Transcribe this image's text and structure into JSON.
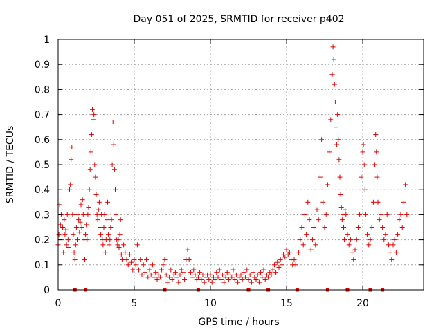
{
  "chart_data": {
    "type": "scatter",
    "title": "Day 051 of 2025, SRMTID for receiver p402",
    "xlabel": "GPS time / hours",
    "ylabel": "SRMTID / TECUs",
    "xlim": [
      0,
      24
    ],
    "ylim": [
      0,
      1
    ],
    "x_ticks": [
      0,
      5,
      10,
      15,
      20
    ],
    "x_tick_labels": [
      "0",
      "5",
      "10",
      "15",
      "20"
    ],
    "y_ticks": [
      0,
      0.1,
      0.2,
      0.3,
      0.4,
      0.5,
      0.6,
      0.7,
      0.8,
      0.9,
      1
    ],
    "y_tick_labels": [
      "0",
      "0.1",
      "0.2",
      "0.3",
      "0.4",
      "0.5",
      "0.6",
      "0.7",
      "0.8",
      "0.9",
      "1"
    ],
    "grid": true,
    "marker": "+",
    "color": "#e00000",
    "series": [
      {
        "name": "SRMTID",
        "points": [
          [
            0.0,
            0.18
          ],
          [
            0.05,
            0.22
          ],
          [
            0.1,
            0.34
          ],
          [
            0.15,
            0.26
          ],
          [
            0.2,
            0.3
          ],
          [
            0.25,
            0.2
          ],
          [
            0.3,
            0.25
          ],
          [
            0.35,
            0.15
          ],
          [
            0.4,
            0.28
          ],
          [
            0.45,
            0.22
          ],
          [
            0.5,
            0.24
          ],
          [
            0.55,
            0.18
          ],
          [
            0.6,
            0.3
          ],
          [
            0.65,
            0.2
          ],
          [
            0.7,
            0.17
          ],
          [
            0.75,
            0.4
          ],
          [
            0.8,
            0.42
          ],
          [
            0.85,
            0.52
          ],
          [
            0.9,
            0.57
          ],
          [
            0.95,
            0.3
          ],
          [
            1.0,
            0.22
          ],
          [
            1.05,
            0.15
          ],
          [
            1.1,
            0.12
          ],
          [
            1.15,
            0.18
          ],
          [
            1.2,
            0.25
          ],
          [
            1.25,
            0.2
          ],
          [
            1.3,
            0.3
          ],
          [
            1.35,
            0.28
          ],
          [
            1.4,
            0.23
          ],
          [
            1.45,
            0.27
          ],
          [
            1.5,
            0.34
          ],
          [
            1.55,
            0.25
          ],
          [
            1.6,
            0.36
          ],
          [
            1.65,
            0.3
          ],
          [
            1.7,
            0.2
          ],
          [
            1.75,
            0.12
          ],
          [
            1.8,
            0.22
          ],
          [
            1.85,
            0.26
          ],
          [
            1.9,
            0.2
          ],
          [
            1.95,
            0.3
          ],
          [
            2.0,
            0.33
          ],
          [
            2.05,
            0.4
          ],
          [
            2.1,
            0.48
          ],
          [
            2.15,
            0.55
          ],
          [
            2.2,
            0.62
          ],
          [
            2.25,
            0.72
          ],
          [
            2.3,
            0.68
          ],
          [
            2.35,
            0.7
          ],
          [
            2.4,
            0.5
          ],
          [
            2.45,
            0.45
          ],
          [
            2.5,
            0.38
          ],
          [
            2.55,
            0.3
          ],
          [
            2.6,
            0.28
          ],
          [
            2.65,
            0.32
          ],
          [
            2.7,
            0.35
          ],
          [
            2.75,
            0.25
          ],
          [
            2.8,
            0.22
          ],
          [
            2.85,
            0.3
          ],
          [
            2.9,
            0.2
          ],
          [
            2.95,
            0.18
          ],
          [
            3.0,
            0.25
          ],
          [
            3.05,
            0.3
          ],
          [
            3.1,
            0.15
          ],
          [
            3.15,
            0.2
          ],
          [
            3.2,
            0.28
          ],
          [
            3.25,
            0.35
          ],
          [
            3.3,
            0.22
          ],
          [
            3.35,
            0.18
          ],
          [
            3.4,
            0.2
          ],
          [
            3.45,
            0.25
          ],
          [
            3.5,
            0.28
          ],
          [
            3.55,
            0.5
          ],
          [
            3.6,
            0.67
          ],
          [
            3.65,
            0.58
          ],
          [
            3.7,
            0.48
          ],
          [
            3.75,
            0.4
          ],
          [
            3.8,
            0.3
          ],
          [
            3.85,
            0.2
          ],
          [
            3.9,
            0.18
          ],
          [
            3.95,
            0.2
          ],
          [
            4.0,
            0.17
          ],
          [
            4.05,
            0.22
          ],
          [
            4.1,
            0.28
          ],
          [
            4.15,
            0.14
          ],
          [
            4.2,
            0.12
          ],
          [
            4.3,
            0.18
          ],
          [
            4.4,
            0.15
          ],
          [
            4.5,
            0.12
          ],
          [
            4.6,
            0.1
          ],
          [
            4.7,
            0.14
          ],
          [
            4.8,
            0.11
          ],
          [
            4.9,
            0.08
          ],
          [
            5.0,
            0.12
          ],
          [
            5.1,
            0.1
          ],
          [
            5.2,
            0.18
          ],
          [
            5.3,
            0.08
          ],
          [
            5.4,
            0.12
          ],
          [
            5.5,
            0.06
          ],
          [
            5.6,
            0.1
          ],
          [
            5.7,
            0.07
          ],
          [
            5.8,
            0.12
          ],
          [
            5.9,
            0.05
          ],
          [
            6.0,
            0.08
          ],
          [
            6.1,
            0.06
          ],
          [
            6.2,
            0.1
          ],
          [
            6.3,
            0.05
          ],
          [
            6.4,
            0.07
          ],
          [
            6.5,
            0.04
          ],
          [
            6.6,
            0.06
          ],
          [
            6.7,
            0.05
          ],
          [
            6.8,
            0.08
          ],
          [
            6.9,
            0.1
          ],
          [
            7.0,
            0.12
          ],
          [
            7.1,
            0.06
          ],
          [
            7.2,
            0.03
          ],
          [
            7.3,
            0.05
          ],
          [
            7.4,
            0.08
          ],
          [
            7.5,
            0.04
          ],
          [
            7.6,
            0.06
          ],
          [
            7.7,
            0.07
          ],
          [
            7.8,
            0.05
          ],
          [
            7.9,
            0.03
          ],
          [
            8.0,
            0.06
          ],
          [
            8.1,
            0.08
          ],
          [
            8.2,
            0.07
          ],
          [
            8.3,
            0.04
          ],
          [
            8.4,
            0.12
          ],
          [
            8.5,
            0.16
          ],
          [
            8.6,
            0.12
          ],
          [
            8.7,
            0.07
          ],
          [
            8.8,
            0.05
          ],
          [
            8.9,
            0.08
          ],
          [
            9.0,
            0.06
          ],
          [
            9.1,
            0.04
          ],
          [
            9.2,
            0.05
          ],
          [
            9.3,
            0.07
          ],
          [
            9.4,
            0.04
          ],
          [
            9.5,
            0.06
          ],
          [
            9.6,
            0.03
          ],
          [
            9.7,
            0.05
          ],
          [
            9.8,
            0.06
          ],
          [
            9.9,
            0.04
          ],
          [
            10.0,
            0.06
          ],
          [
            10.1,
            0.03
          ],
          [
            10.2,
            0.05
          ],
          [
            10.3,
            0.04
          ],
          [
            10.4,
            0.07
          ],
          [
            10.5,
            0.05
          ],
          [
            10.6,
            0.08
          ],
          [
            10.7,
            0.04
          ],
          [
            10.8,
            0.06
          ],
          [
            10.9,
            0.03
          ],
          [
            11.0,
            0.05
          ],
          [
            11.1,
            0.07
          ],
          [
            11.2,
            0.04
          ],
          [
            11.3,
            0.06
          ],
          [
            11.4,
            0.05
          ],
          [
            11.5,
            0.08
          ],
          [
            11.6,
            0.04
          ],
          [
            11.7,
            0.06
          ],
          [
            11.8,
            0.03
          ],
          [
            11.9,
            0.05
          ],
          [
            12.0,
            0.06
          ],
          [
            12.1,
            0.04
          ],
          [
            12.2,
            0.07
          ],
          [
            12.3,
            0.05
          ],
          [
            12.4,
            0.08
          ],
          [
            12.5,
            0.04
          ],
          [
            12.6,
            0.06
          ],
          [
            12.7,
            0.03
          ],
          [
            12.8,
            0.07
          ],
          [
            12.9,
            0.05
          ],
          [
            13.0,
            0.04
          ],
          [
            13.1,
            0.06
          ],
          [
            13.2,
            0.03
          ],
          [
            13.3,
            0.07
          ],
          [
            13.4,
            0.05
          ],
          [
            13.5,
            0.08
          ],
          [
            13.6,
            0.04
          ],
          [
            13.7,
            0.06
          ],
          [
            13.8,
            0.05
          ],
          [
            13.9,
            0.07
          ],
          [
            14.0,
            0.06
          ],
          [
            14.1,
            0.08
          ],
          [
            14.2,
            0.1
          ],
          [
            14.3,
            0.07
          ],
          [
            14.4,
            0.11
          ],
          [
            14.5,
            0.09
          ],
          [
            14.6,
            0.12
          ],
          [
            14.7,
            0.1
          ],
          [
            14.8,
            0.14
          ],
          [
            14.9,
            0.13
          ],
          [
            15.0,
            0.16
          ],
          [
            15.1,
            0.14
          ],
          [
            15.2,
            0.15
          ],
          [
            15.3,
            0.12
          ],
          [
            15.4,
            0.1
          ],
          [
            15.5,
            0.12
          ],
          [
            15.6,
            0.1
          ],
          [
            15.8,
            0.15
          ],
          [
            15.9,
            0.2
          ],
          [
            16.0,
            0.25
          ],
          [
            16.1,
            0.18
          ],
          [
            16.2,
            0.3
          ],
          [
            16.3,
            0.22
          ],
          [
            16.4,
            0.35
          ],
          [
            16.5,
            0.28
          ],
          [
            16.6,
            0.16
          ],
          [
            16.7,
            0.2
          ],
          [
            16.8,
            0.25
          ],
          [
            16.9,
            0.18
          ],
          [
            17.0,
            0.32
          ],
          [
            17.1,
            0.28
          ],
          [
            17.2,
            0.45
          ],
          [
            17.3,
            0.6
          ],
          [
            17.4,
            0.35
          ],
          [
            17.5,
            0.25
          ],
          [
            17.6,
            0.3
          ],
          [
            17.7,
            0.42
          ],
          [
            17.8,
            0.55
          ],
          [
            17.9,
            0.68
          ],
          [
            18.0,
            0.86
          ],
          [
            18.05,
            0.97
          ],
          [
            18.1,
            0.92
          ],
          [
            18.15,
            0.82
          ],
          [
            18.2,
            0.75
          ],
          [
            18.25,
            0.65
          ],
          [
            18.3,
            0.58
          ],
          [
            18.35,
            0.7
          ],
          [
            18.4,
            0.6
          ],
          [
            18.45,
            0.52
          ],
          [
            18.5,
            0.45
          ],
          [
            18.55,
            0.38
          ],
          [
            18.6,
            0.33
          ],
          [
            18.65,
            0.28
          ],
          [
            18.7,
            0.3
          ],
          [
            18.75,
            0.25
          ],
          [
            18.8,
            0.2
          ],
          [
            18.85,
            0.32
          ],
          [
            18.9,
            0.3
          ],
          [
            19.0,
            0.22
          ],
          [
            19.1,
            0.18
          ],
          [
            19.2,
            0.2
          ],
          [
            19.3,
            0.15
          ],
          [
            19.4,
            0.12
          ],
          [
            19.5,
            0.16
          ],
          [
            19.6,
            0.2
          ],
          [
            19.7,
            0.25
          ],
          [
            19.8,
            0.3
          ],
          [
            19.9,
            0.45
          ],
          [
            20.0,
            0.55
          ],
          [
            20.05,
            0.58
          ],
          [
            20.1,
            0.5
          ],
          [
            20.15,
            0.4
          ],
          [
            20.2,
            0.3
          ],
          [
            20.3,
            0.22
          ],
          [
            20.4,
            0.18
          ],
          [
            20.5,
            0.2
          ],
          [
            20.6,
            0.25
          ],
          [
            20.7,
            0.35
          ],
          [
            20.8,
            0.5
          ],
          [
            20.85,
            0.62
          ],
          [
            20.9,
            0.55
          ],
          [
            20.95,
            0.45
          ],
          [
            21.0,
            0.35
          ],
          [
            21.1,
            0.28
          ],
          [
            21.2,
            0.3
          ],
          [
            21.3,
            0.25
          ],
          [
            21.4,
            0.2
          ],
          [
            21.5,
            0.22
          ],
          [
            21.6,
            0.3
          ],
          [
            21.7,
            0.18
          ],
          [
            21.8,
            0.15
          ],
          [
            21.9,
            0.12
          ],
          [
            22.0,
            0.18
          ],
          [
            22.1,
            0.2
          ],
          [
            22.2,
            0.15
          ],
          [
            22.3,
            0.22
          ],
          [
            22.4,
            0.28
          ],
          [
            22.5,
            0.3
          ],
          [
            22.6,
            0.25
          ],
          [
            22.7,
            0.35
          ],
          [
            22.8,
            0.42
          ],
          [
            22.9,
            0.3
          ]
        ]
      }
    ],
    "gap_markers_x": [
      1.1,
      1.8,
      7.0,
      9.2,
      12.5,
      13.8,
      15.7,
      17.7,
      19.0,
      20.5,
      21.3
    ]
  }
}
